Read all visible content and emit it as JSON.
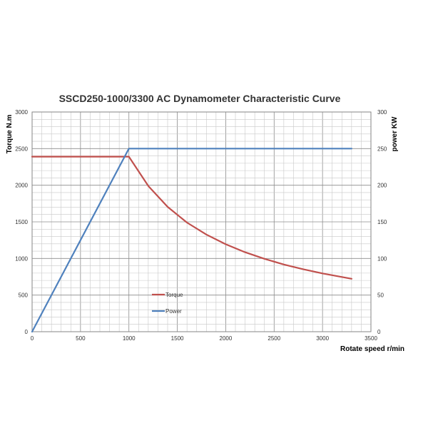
{
  "chart_data": {
    "type": "line",
    "title": "SSCD250-1000/3300 AC Dynamometer Characteristic Curve",
    "xlabel": "Rotate speed r/min",
    "ylabel": "Torque N.m",
    "y2label": "power KW",
    "xlim": [
      0,
      3500
    ],
    "ylim": [
      0,
      3000
    ],
    "y2lim": [
      0,
      300
    ],
    "x_ticks": [
      "0",
      "500",
      "1000",
      "1500",
      "2000",
      "2500",
      "3000",
      "3500"
    ],
    "y_ticks": [
      "0",
      "500",
      "1000",
      "1500",
      "2000",
      "2500",
      "3000"
    ],
    "y2_ticks": [
      "0",
      "50",
      "100",
      "150",
      "200",
      "250",
      "300"
    ],
    "grid": true,
    "legend_position": "inside-bottom-left",
    "series": [
      {
        "name": "Torque",
        "axis": "left",
        "color": "#c0504d",
        "x": [
          0,
          1000,
          1200,
          1400,
          1600,
          1800,
          2000,
          2200,
          2400,
          2600,
          2800,
          3000,
          3300
        ],
        "y": [
          2390,
          2390,
          1990,
          1705,
          1490,
          1327,
          1194,
          1085,
          995,
          918,
          853,
          796,
          723
        ]
      },
      {
        "name": "Power",
        "axis": "right",
        "color": "#4f81bd",
        "x": [
          0,
          1000,
          3300
        ],
        "y": [
          0,
          250,
          250
        ]
      }
    ]
  }
}
